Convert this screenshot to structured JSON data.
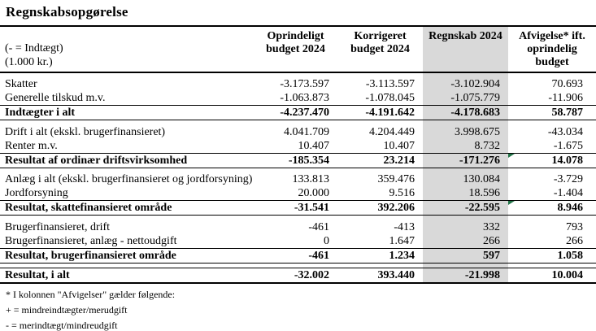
{
  "title": "Regnskabsopgørelse",
  "colors": {
    "highlight_column_bg": "#d9d9d9",
    "comment_flag_green": "#217346",
    "border": "#000000"
  },
  "table": {
    "corner": {
      "line1": "(- = Indtægt)",
      "line2": "(1.000 kr.)"
    },
    "columns": [
      "Oprindeligt budget 2024",
      "Korrigeret budget 2024",
      "Regnskab 2024",
      "Afvigelse* ift. oprindelig budget"
    ],
    "rows": [
      {
        "label": "Skatter",
        "values": [
          "-3.173.597",
          "-3.113.597",
          "-3.102.904",
          "70.693"
        ],
        "type": "data",
        "gap_before": true
      },
      {
        "label": "Generelle tilskud m.v.",
        "values": [
          "-1.063.873",
          "-1.078.045",
          "-1.075.779",
          "-11.906"
        ],
        "type": "data"
      },
      {
        "label": "Indtægter i alt",
        "values": [
          "-4.237.470",
          "-4.191.642",
          "-4.178.683",
          "58.787"
        ],
        "type": "total"
      },
      {
        "label": "Drift i alt (ekskl. brugerfinansieret)",
        "values": [
          "4.041.709",
          "4.204.449",
          "3.998.675",
          "-43.034"
        ],
        "type": "data",
        "gap_before": true
      },
      {
        "label": "Renter m.v.",
        "values": [
          "10.407",
          "10.407",
          "8.732",
          "-1.675"
        ],
        "type": "data"
      },
      {
        "label": "Resultat af ordinær driftsvirksomhed",
        "values": [
          "-185.354",
          "23.214",
          "-171.276",
          "14.078"
        ],
        "type": "total",
        "marker": true
      },
      {
        "label": "Anlæg i alt (ekskl. brugerfinansieret og jordforsyning)",
        "values": [
          "133.813",
          "359.476",
          "130.084",
          "-3.729"
        ],
        "type": "data",
        "gap_before": true
      },
      {
        "label": "Jordforsyning",
        "values": [
          "20.000",
          "9.516",
          "18.596",
          "-1.404"
        ],
        "type": "data"
      },
      {
        "label": "Resultat, skattefinansieret område",
        "values": [
          "-31.541",
          "392.206",
          "-22.595",
          "8.946"
        ],
        "type": "total",
        "marker": true
      },
      {
        "label": "Brugerfinansieret, drift",
        "values": [
          "-461",
          "-413",
          "332",
          "793"
        ],
        "type": "data",
        "gap_before": true
      },
      {
        "label": "Brugerfinansieret, anlæg - nettoudgift",
        "values": [
          "0",
          "1.647",
          "266",
          "266"
        ],
        "type": "data"
      },
      {
        "label": "Resultat, brugerfinansieret område",
        "values": [
          "-461",
          "1.234",
          "597",
          "1.058"
        ],
        "type": "total"
      },
      {
        "label": "Resultat, i alt",
        "values": [
          "-32.002",
          "393.440",
          "-21.998",
          "10.004"
        ],
        "type": "grand",
        "gap_before": true
      }
    ]
  },
  "footnotes": [
    "* I kolonnen \"Afvigelser\" gælder følgende:",
    "+ = mindreindtægter/merudgift",
    "- = merindtægt/mindreudgift"
  ]
}
